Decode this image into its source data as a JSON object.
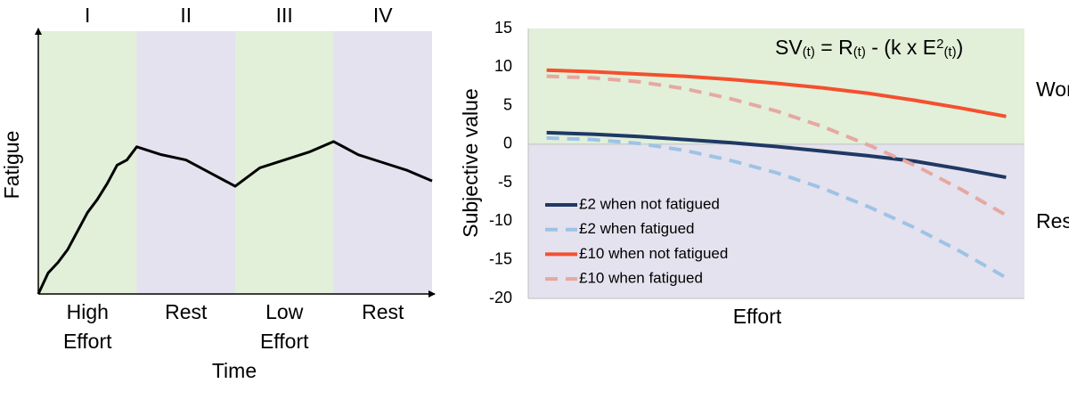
{
  "chart_data": [
    {
      "type": "line",
      "ylabel": "Fatigue",
      "xlabel": "Time",
      "phases": [
        {
          "label": "I",
          "caption": "High Effort",
          "color": "#e2efd9",
          "from": 0,
          "to": 1
        },
        {
          "label": "II",
          "caption": "Rest",
          "color": "#e4e2ee",
          "from": 1,
          "to": 2
        },
        {
          "label": "III",
          "caption": "Low Effort",
          "color": "#e2efd9",
          "from": 2,
          "to": 3
        },
        {
          "label": "IV",
          "caption": "Rest",
          "color": "#e4e2ee",
          "from": 3,
          "to": 4
        }
      ],
      "x": [
        0,
        0.1,
        0.2,
        0.3,
        0.4,
        0.5,
        0.6,
        0.7,
        0.8,
        0.9,
        1.0,
        1.25,
        1.5,
        1.75,
        2.0,
        2.25,
        2.5,
        2.75,
        3.0,
        3.25,
        3.5,
        3.75,
        4.0
      ],
      "values": [
        0,
        0.08,
        0.12,
        0.17,
        0.24,
        0.31,
        0.36,
        0.42,
        0.49,
        0.51,
        0.56,
        0.53,
        0.51,
        0.46,
        0.41,
        0.48,
        0.51,
        0.54,
        0.58,
        0.53,
        0.5,
        0.47,
        0.43
      ],
      "color": "#000000",
      "xlim": [
        0,
        4
      ],
      "ylim": [
        0,
        1
      ]
    },
    {
      "type": "line",
      "ylabel": "Subjective value",
      "xlabel": "Effort",
      "equation": [
        {
          "text": "SV"
        },
        {
          "text": "(t)",
          "script": "sub"
        },
        {
          "text": " = R"
        },
        {
          "text": "(t)",
          "script": "sub"
        },
        {
          "text": " - (k x E"
        },
        {
          "text": "2",
          "script": "sup"
        },
        {
          "text": "(t)",
          "script": "sub"
        },
        {
          "text": ")"
        }
      ],
      "regions": [
        {
          "label": "Work",
          "from": 0,
          "to": 15,
          "color": "#e2efd9"
        },
        {
          "label": "Rest",
          "from": -20,
          "to": 0,
          "color": "#e4e2ee"
        }
      ],
      "x": [
        0,
        1,
        2,
        3,
        4,
        5,
        6,
        7,
        8,
        9,
        10
      ],
      "series": [
        {
          "name": "£2 when not fatigued",
          "color": "#1f3864",
          "dashed": false,
          "values": [
            1.5,
            1.3,
            1.0,
            0.6,
            0.2,
            -0.3,
            -0.9,
            -1.5,
            -2.2,
            -3.2,
            -4.3
          ]
        },
        {
          "name": "£2 when fatigued",
          "color": "#9dc3e6",
          "dashed": true,
          "values": [
            0.8,
            0.6,
            0.1,
            -0.8,
            -2.1,
            -3.7,
            -5.7,
            -8.1,
            -10.8,
            -13.9,
            -17.3
          ]
        },
        {
          "name": "£10 when not fatigued",
          "color": "#f4502e",
          "dashed": false,
          "values": [
            9.6,
            9.4,
            9.1,
            8.8,
            8.4,
            7.9,
            7.3,
            6.6,
            5.7,
            4.7,
            3.6
          ]
        },
        {
          "name": "£10 when fatigued",
          "color": "#e6a8a1",
          "dashed": true,
          "values": [
            8.8,
            8.6,
            8.1,
            7.2,
            5.9,
            4.3,
            2.3,
            -0.1,
            -2.7,
            -5.8,
            -9.2
          ]
        }
      ],
      "xlim": [
        -0.4,
        10.4
      ],
      "ylim": [
        -20,
        15
      ],
      "yticks": [
        -20,
        -15,
        -10,
        -5,
        0,
        5,
        10,
        15
      ],
      "legend": "lower-left"
    }
  ]
}
